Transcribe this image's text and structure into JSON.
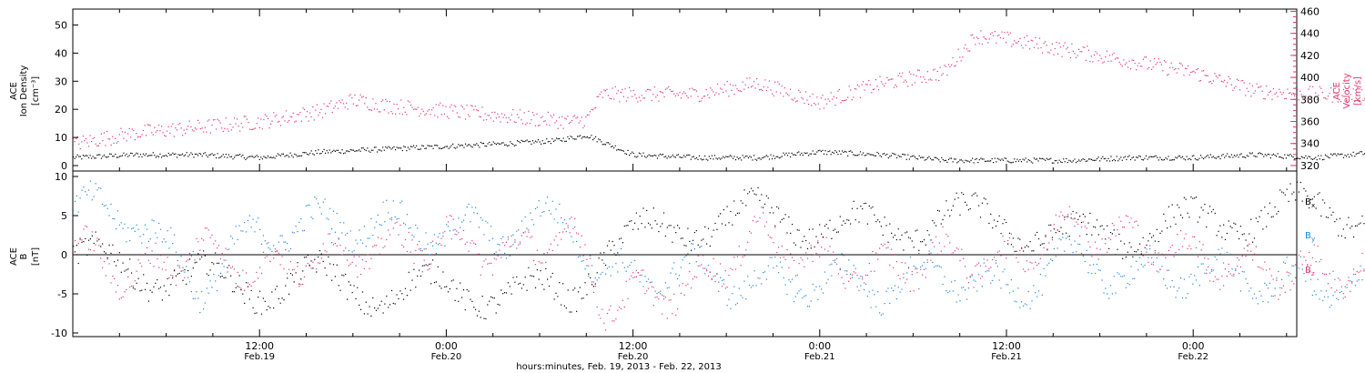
{
  "colors": {
    "black": "#000000",
    "pink": "#e8336b",
    "blue": "#1a86e0"
  },
  "chart_data": [
    {
      "panel": "top",
      "type": "scatter",
      "ylabel_left": [
        "ACE",
        "Ion Density",
        "[cm⁻³]"
      ],
      "ylabel_right": [
        "ACE",
        "Velocity",
        "[km/s]"
      ],
      "y_left_range": [
        0,
        55
      ],
      "y_left_ticks": [
        "0",
        "10",
        "20",
        "30",
        "40",
        "50"
      ],
      "y_right_range": [
        315,
        462
      ],
      "y_right_ticks": [
        "320",
        "340",
        "360",
        "380",
        "400",
        "420",
        "440",
        "460"
      ],
      "series": [
        {
          "axis": "left",
          "color": "#000000",
          "hours": [
            0,
            4,
            8,
            12,
            16,
            20,
            24,
            28,
            31,
            33,
            36,
            40,
            44,
            48,
            52,
            56,
            60,
            64,
            68,
            72,
            76,
            80,
            84,
            88,
            90,
            92
          ],
          "values": [
            3,
            4,
            4,
            3,
            5,
            6,
            7,
            8,
            9,
            11,
            4,
            3,
            3,
            5,
            4,
            2,
            2,
            2,
            3,
            3,
            4,
            3,
            5,
            4,
            4,
            4
          ]
        },
        {
          "axis": "right",
          "color": "#e8336b",
          "hours": [
            0,
            4,
            8,
            12,
            16,
            18,
            20,
            24,
            28,
            32,
            33,
            34,
            40,
            44,
            48,
            52,
            56,
            58,
            60,
            64,
            68,
            72,
            76,
            80,
            84,
            88,
            92
          ],
          "values": [
            340,
            350,
            355,
            360,
            370,
            380,
            375,
            370,
            365,
            360,
            362,
            385,
            385,
            395,
            378,
            395,
            405,
            438,
            435,
            425,
            415,
            405,
            388,
            385,
            384,
            390,
            390
          ]
        }
      ]
    },
    {
      "panel": "bottom",
      "type": "scatter",
      "ylabel_left": [
        "ACE",
        "B",
        "[nT]"
      ],
      "y_range": [
        -10.5,
        10.5
      ],
      "y_ticks": [
        "-10",
        "-5",
        "0",
        "5",
        "10"
      ],
      "legend": [
        "Bx",
        "By",
        "Bz"
      ],
      "legend_text": {
        "B": "B",
        "x": "x",
        "y": "y",
        "z": "z"
      },
      "series": [
        {
          "name": "Bx",
          "color": "#000000",
          "hours": [
            0,
            4,
            8,
            12,
            16,
            20,
            24,
            28,
            32,
            34,
            40,
            44,
            48,
            52,
            56,
            60,
            64,
            68,
            72,
            76,
            80,
            84,
            88,
            92
          ],
          "values": [
            0,
            -2,
            -3,
            -4,
            -3,
            -5,
            -4,
            -5,
            -5,
            1,
            4,
            5,
            4,
            3,
            5,
            4,
            2,
            3,
            4,
            5,
            6,
            5,
            4,
            3
          ]
        },
        {
          "name": "By",
          "color": "#1a86e0",
          "hours": [
            0,
            4,
            8,
            12,
            16,
            20,
            24,
            28,
            32,
            34,
            40,
            44,
            48,
            52,
            56,
            60,
            64,
            68,
            72,
            76,
            80,
            84,
            88,
            92
          ],
          "values": [
            6,
            5,
            -4,
            3,
            4,
            4,
            3,
            3,
            5,
            -3,
            -2,
            -4,
            -3,
            -4,
            -2,
            -5,
            0,
            -3,
            -2,
            -3,
            -4,
            -3,
            -4,
            -4
          ]
        },
        {
          "name": "Bz",
          "color": "#e8336b",
          "hours": [
            0,
            4,
            8,
            12,
            16,
            20,
            24,
            28,
            32,
            34,
            40,
            44,
            48,
            52,
            56,
            60,
            64,
            68,
            72,
            76,
            80,
            84,
            88,
            92
          ],
          "values": [
            1,
            -3,
            1,
            -2,
            0,
            1,
            2,
            0,
            3,
            -6,
            -4,
            3,
            -1,
            -2,
            0,
            -1,
            4,
            2,
            0,
            -2,
            -2,
            -2,
            -3,
            -3
          ]
        }
      ]
    }
  ],
  "x_axis": {
    "ticks": [
      {
        "hours": 12,
        "time": "12:00",
        "date": "Feb.19"
      },
      {
        "hours": 24,
        "time": "0:00",
        "date": "Feb.20"
      },
      {
        "hours": 36,
        "time": "12:00",
        "date": "Feb.20"
      },
      {
        "hours": 48,
        "time": "0:00",
        "date": "Feb.21"
      },
      {
        "hours": 60,
        "time": "12:00",
        "date": "Feb.21"
      },
      {
        "hours": 72,
        "time": "0:00",
        "date": "Feb.22"
      }
    ],
    "label": "hours:minutes, Feb. 19, 2013 - Feb. 22, 2013"
  }
}
